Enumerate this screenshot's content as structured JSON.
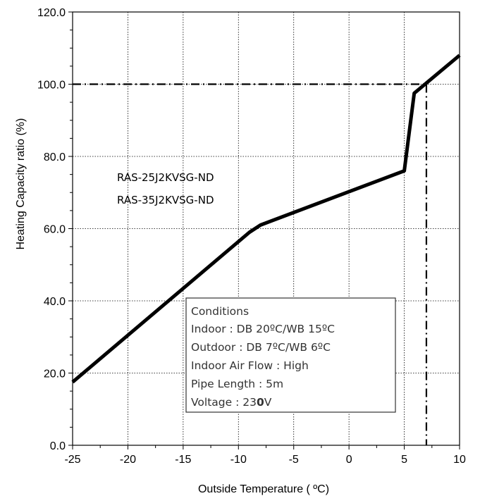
{
  "chart_data": {
    "type": "line",
    "title": "",
    "xlabel": "Outside Temperature ( ºC)",
    "ylabel": "Heating Capacity ratio (%)",
    "xlim": [
      -25,
      10
    ],
    "ylim": [
      0,
      120
    ],
    "x_ticks": [
      "-25",
      "-20",
      "-15",
      "-10",
      "-5",
      "0",
      "5",
      "10"
    ],
    "y_ticks": [
      "0.0",
      "20.0",
      "40.0",
      "60.0",
      "80.0",
      "100.0",
      "120.0"
    ],
    "grid": true,
    "series": [
      {
        "x": [
          -25,
          -9,
          -8,
          5,
          5.9,
          10
        ],
        "y": [
          17.5,
          59,
          61,
          76,
          97.5,
          108
        ]
      }
    ],
    "reference_lines": {
      "horizontal_y": 100,
      "vertical_x": 7
    },
    "model_labels": [
      "RAS-25J2KVSG-ND",
      "RAS-35J2KVSG-ND"
    ],
    "conditions": {
      "heading": "Conditions",
      "indoor": "Indoor : DB 20ºC/WB 15ºC",
      "outdoor": "Outdoor : DB 7ºC/WB 6ºC",
      "air_flow": "Indoor Air Flow : High",
      "pipe_length": "Pipe Length : 5m",
      "voltage_prefix": "Voltage : 23",
      "voltage_bold": "0",
      "voltage_suffix": "V"
    }
  }
}
